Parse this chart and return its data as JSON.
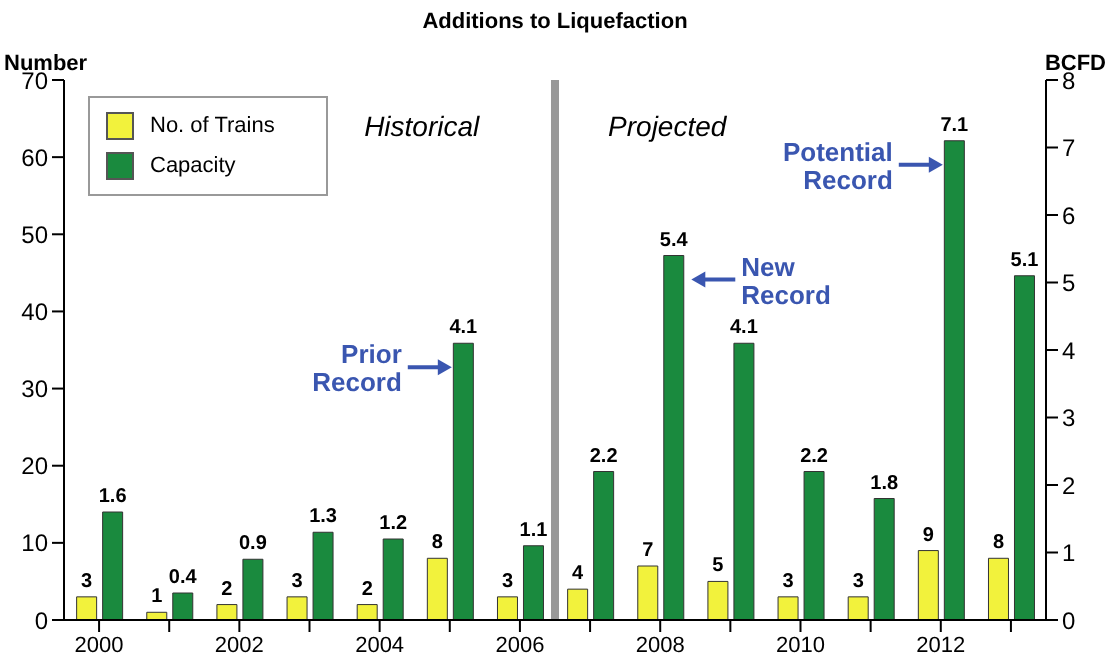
{
  "chart_data": {
    "type": "bar",
    "title": "Additions to Liquefaction",
    "ylabel": "Number",
    "y2label": "BCFD",
    "categories": [
      "2000",
      null,
      "2002",
      null,
      "2004",
      null,
      "2006",
      null,
      "2008",
      null,
      "2010",
      null,
      "2012",
      null
    ],
    "series": [
      {
        "name": "No. of Trains",
        "color": "#f2f23c",
        "axis": "y",
        "values": [
          3,
          1,
          2,
          3,
          2,
          8,
          3,
          4,
          7,
          5,
          3,
          3,
          9,
          8
        ]
      },
      {
        "name": "Capacity",
        "color": "#1a8a3e",
        "axis": "y2",
        "values": [
          1.6,
          0.4,
          0.9,
          1.3,
          1.2,
          4.1,
          1.1,
          2.2,
          5.4,
          4.1,
          2.2,
          1.8,
          7.1,
          5.1
        ]
      }
    ],
    "ylim": [
      0,
      70
    ],
    "yticks": [
      0,
      10,
      20,
      30,
      40,
      50,
      60,
      70
    ],
    "y2lim": [
      0,
      8
    ],
    "y2ticks": [
      0,
      1,
      2,
      3,
      4,
      5,
      6,
      7,
      8
    ],
    "annotations": [
      "Historical",
      "Projected",
      "Prior Record",
      "New Record",
      "Potential Record"
    ],
    "data_labels": true,
    "legend": "top left"
  }
}
